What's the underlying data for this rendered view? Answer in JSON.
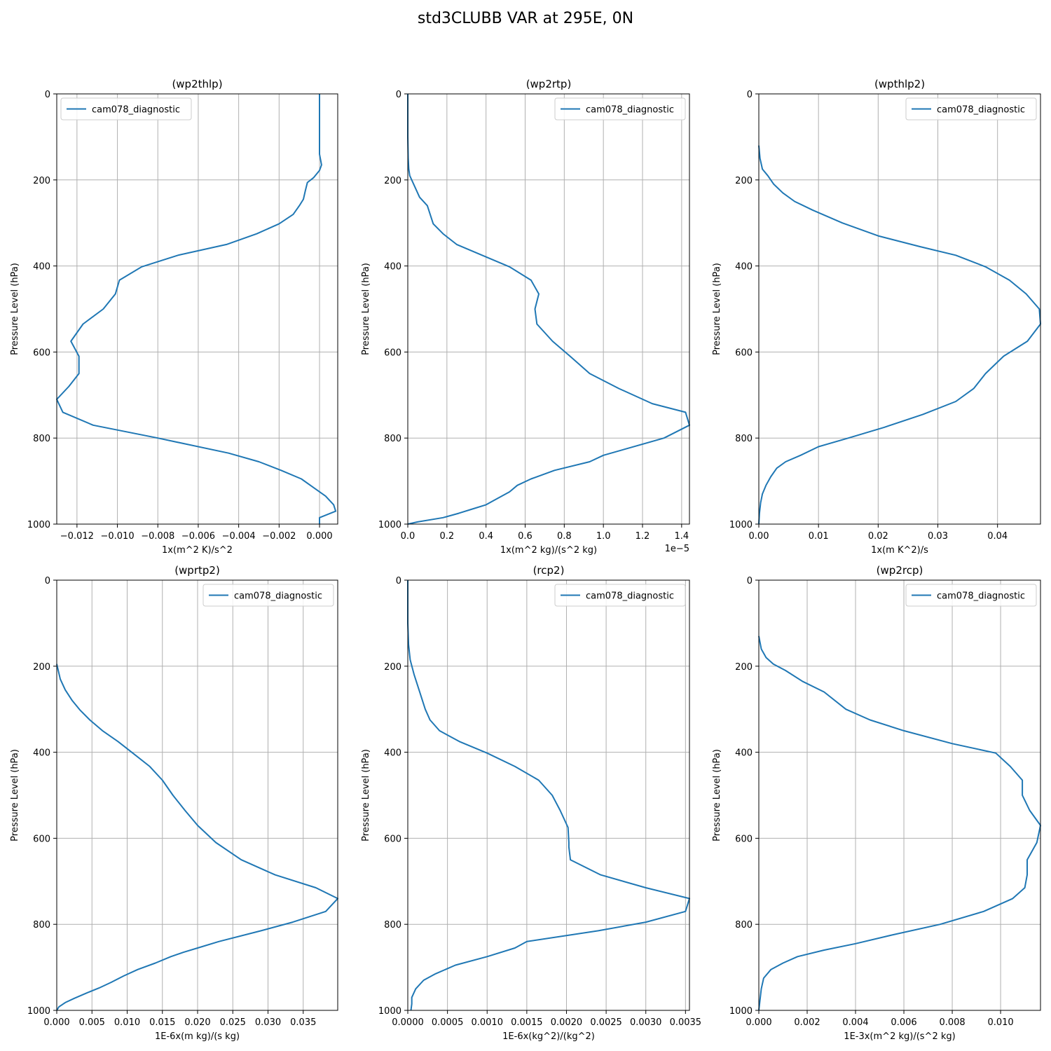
{
  "figure": {
    "title": "std3CLUBB VAR at 295E, 0N"
  },
  "style": {
    "line_color": "#1f77b4",
    "grid_color": "#b0b0b0"
  },
  "chart_data": [
    {
      "type": "line",
      "title": "(wp2thlp)",
      "xlabel": "1x(m^2 K)/s^2",
      "ylabel": "Pressure Level (hPa)",
      "xlim": [
        -0.013,
        0.0009
      ],
      "ylim": [
        1000,
        0
      ],
      "x_ticks": [
        -0.012,
        -0.01,
        -0.008,
        -0.006,
        -0.004,
        -0.002,
        0.0
      ],
      "x_tick_labels": [
        "−0.012",
        "−0.010",
        "−0.008",
        "−0.006",
        "−0.004",
        "−0.002",
        "0.000"
      ],
      "y_ticks": [
        0,
        200,
        400,
        600,
        800,
        1000
      ],
      "y_tick_labels": [
        "0",
        "200",
        "400",
        "600",
        "800",
        "1000"
      ],
      "offset_text": "",
      "grid": true,
      "legend_position": "upper left",
      "series": [
        {
          "name": "cam078_diagnostic",
          "x": [
            0.0,
            0.0,
            0.0,
            0.0,
            0.0001,
            0.0,
            -0.0003,
            -0.0006,
            -0.0007,
            -0.0008,
            -0.001,
            -0.0013,
            -0.002,
            -0.0031,
            -0.0046,
            -0.007,
            -0.0088,
            -0.0099,
            -0.0101,
            -0.0107,
            -0.0117,
            -0.0123,
            -0.0119,
            -0.0119,
            -0.0124,
            -0.013,
            -0.0127,
            -0.0112,
            -0.008,
            -0.0045,
            -0.003,
            -0.0019,
            -0.0009,
            -0.0003,
            0.0003,
            0.0007,
            0.0008,
            0.0,
            0.0
          ],
          "y": [
            0,
            50,
            100,
            140,
            165,
            178,
            195,
            206,
            225,
            245,
            260,
            280,
            302,
            325,
            350,
            375,
            402,
            433,
            465,
            500,
            535,
            575,
            610,
            650,
            680,
            710,
            740,
            770,
            800,
            835,
            855,
            875,
            895,
            915,
            935,
            955,
            970,
            985,
            1000
          ]
        }
      ]
    },
    {
      "type": "line",
      "title": "(wp2rtp)",
      "xlabel": "1x(m^2 kg)/(s^2 kg)",
      "ylabel": "Pressure Level (hPa)",
      "xlim": [
        0.0,
        1.44
      ],
      "ylim": [
        1000,
        0
      ],
      "x_ticks": [
        0.0,
        0.2,
        0.4,
        0.6,
        0.8,
        1.0,
        1.2,
        1.4
      ],
      "x_tick_labels": [
        "0.0",
        "0.2",
        "0.4",
        "0.6",
        "0.8",
        "1.0",
        "1.2",
        "1.4"
      ],
      "y_ticks": [
        0,
        200,
        400,
        600,
        800,
        1000
      ],
      "y_tick_labels": [
        "0",
        "200",
        "400",
        "600",
        "800",
        "1000"
      ],
      "offset_text": "1e−5",
      "grid": true,
      "legend_position": "upper right",
      "series": [
        {
          "name": "cam078_diagnostic",
          "x": [
            0.0,
            0.0,
            0.002,
            0.005,
            0.01,
            0.03,
            0.06,
            0.1,
            0.13,
            0.18,
            0.25,
            0.38,
            0.52,
            0.63,
            0.67,
            0.65,
            0.66,
            0.74,
            0.83,
            0.93,
            1.08,
            1.25,
            1.42,
            1.44,
            1.31,
            1.0,
            0.93,
            0.75,
            0.63,
            0.56,
            0.52,
            0.44,
            0.4,
            0.33,
            0.26,
            0.18,
            0.05,
            0.0
          ],
          "y": [
            0,
            100,
            150,
            175,
            190,
            210,
            240,
            260,
            302,
            325,
            350,
            375,
            402,
            433,
            465,
            500,
            535,
            575,
            610,
            650,
            685,
            720,
            740,
            770,
            800,
            840,
            855,
            875,
            895,
            910,
            925,
            945,
            955,
            965,
            975,
            985,
            995,
            1000
          ]
        }
      ]
    },
    {
      "type": "line",
      "title": "(wpthlp2)",
      "xlabel": "1x(m K^2)/s",
      "ylabel": "Pressure Level (hPa)",
      "xlim": [
        0.0,
        0.0472
      ],
      "ylim": [
        1000,
        0
      ],
      "x_ticks": [
        0.0,
        0.01,
        0.02,
        0.03,
        0.04
      ],
      "x_tick_labels": [
        "0.00",
        "0.01",
        "0.02",
        "0.03",
        "0.04"
      ],
      "y_ticks": [
        0,
        200,
        400,
        600,
        800,
        1000
      ],
      "y_tick_labels": [
        "0",
        "200",
        "400",
        "600",
        "800",
        "1000"
      ],
      "offset_text": "",
      "grid": true,
      "legend_position": "upper right",
      "series": [
        {
          "name": "cam078_diagnostic",
          "x": [
            0.0,
            0.0002,
            0.0006,
            0.0015,
            0.0025,
            0.004,
            0.006,
            0.009,
            0.014,
            0.02,
            0.027,
            0.033,
            0.038,
            0.042,
            0.0448,
            0.047,
            0.0472,
            0.045,
            0.041,
            0.038,
            0.036,
            0.033,
            0.0275,
            0.021,
            0.015,
            0.01,
            0.007,
            0.0045,
            0.003,
            0.002,
            0.0012,
            0.0006,
            0.0003,
            0.0001,
            0.0
          ],
          "y": [
            120,
            150,
            175,
            190,
            210,
            230,
            250,
            270,
            300,
            330,
            355,
            375,
            402,
            433,
            465,
            500,
            535,
            575,
            610,
            650,
            685,
            715,
            745,
            775,
            800,
            820,
            840,
            855,
            870,
            890,
            910,
            930,
            950,
            975,
            1000
          ]
        }
      ]
    },
    {
      "type": "line",
      "title": "(wprtp2)",
      "xlabel": "1E-6x(m kg)/(s kg)",
      "ylabel": "Pressure Level (hPa)",
      "xlim": [
        0.0,
        0.0399
      ],
      "ylim": [
        1000,
        0
      ],
      "x_ticks": [
        0.0,
        0.005,
        0.01,
        0.015,
        0.02,
        0.025,
        0.03,
        0.035
      ],
      "x_tick_labels": [
        "0.000",
        "0.005",
        "0.010",
        "0.015",
        "0.020",
        "0.025",
        "0.030",
        "0.035"
      ],
      "y_ticks": [
        0,
        200,
        400,
        600,
        800,
        1000
      ],
      "y_tick_labels": [
        "0",
        "200",
        "400",
        "600",
        "800",
        "1000"
      ],
      "offset_text": "",
      "grid": true,
      "legend_position": "upper right",
      "series": [
        {
          "name": "cam078_diagnostic",
          "x": [
            0.0,
            0.0005,
            0.0012,
            0.0022,
            0.0033,
            0.0047,
            0.0065,
            0.0087,
            0.0108,
            0.0132,
            0.015,
            0.0165,
            0.0182,
            0.02,
            0.0226,
            0.0262,
            0.031,
            0.0368,
            0.0399,
            0.0382,
            0.0335,
            0.029,
            0.023,
            0.02,
            0.018,
            0.0162,
            0.014,
            0.0115,
            0.0095,
            0.0077,
            0.006,
            0.0042,
            0.0025,
            0.0012,
            0.0003,
            0.0
          ],
          "y": [
            195,
            230,
            255,
            280,
            302,
            325,
            350,
            375,
            402,
            433,
            465,
            500,
            535,
            570,
            610,
            650,
            685,
            715,
            740,
            770,
            795,
            815,
            840,
            855,
            865,
            875,
            890,
            905,
            920,
            935,
            948,
            960,
            972,
            982,
            992,
            1000
          ]
        }
      ]
    },
    {
      "type": "line",
      "title": "(rcp2)",
      "xlabel": "1E-6x(kg^2)/(kg^2)",
      "ylabel": "Pressure Level (hPa)",
      "xlim": [
        0.0,
        0.00355
      ],
      "ylim": [
        1000,
        0
      ],
      "x_ticks": [
        0.0,
        0.0005,
        0.001,
        0.0015,
        0.002,
        0.0025,
        0.003,
        0.0035
      ],
      "x_tick_labels": [
        "0.0000",
        "0.0005",
        "0.0010",
        "0.0015",
        "0.0020",
        "0.0025",
        "0.0030",
        "0.0035"
      ],
      "y_ticks": [
        0,
        200,
        400,
        600,
        800,
        1000
      ],
      "y_tick_labels": [
        "0",
        "200",
        "400",
        "600",
        "800",
        "1000"
      ],
      "offset_text": "",
      "grid": true,
      "legend_position": "upper right",
      "series": [
        {
          "name": "cam078_diagnostic",
          "x": [
            0.0,
            0.0,
            1e-05,
            3e-05,
            8e-05,
            0.00015,
            0.00022,
            0.00028,
            0.0004,
            0.00065,
            0.001,
            0.00135,
            0.00165,
            0.00182,
            0.00192,
            0.00202,
            0.00203,
            0.00203,
            0.00205,
            0.00243,
            0.003,
            0.00355,
            0.0035,
            0.003,
            0.0024,
            0.0015,
            0.00135,
            0.001,
            0.0006,
            0.00035,
            0.0002,
            0.0001,
            5e-05,
            5e-05,
            4e-05
          ],
          "y": [
            0,
            100,
            150,
            185,
            220,
            260,
            300,
            325,
            350,
            375,
            402,
            433,
            465,
            500,
            535,
            575,
            610,
            620,
            650,
            685,
            715,
            740,
            770,
            795,
            815,
            840,
            855,
            875,
            895,
            915,
            930,
            950,
            970,
            985,
            1000
          ]
        }
      ]
    },
    {
      "type": "line",
      "title": "(wp2rcp)",
      "xlabel": "1E-3x(m^2 kg)/(s^2 kg)",
      "ylabel": "Pressure Level (hPa)",
      "xlim": [
        0.0,
        0.01165
      ],
      "ylim": [
        1000,
        0
      ],
      "x_ticks": [
        0.0,
        0.002,
        0.004,
        0.006,
        0.008,
        0.01
      ],
      "x_tick_labels": [
        "0.000",
        "0.002",
        "0.004",
        "0.006",
        "0.008",
        "0.010"
      ],
      "y_ticks": [
        0,
        200,
        400,
        600,
        800,
        1000
      ],
      "y_tick_labels": [
        "0",
        "200",
        "400",
        "600",
        "800",
        "1000"
      ],
      "offset_text": "",
      "grid": true,
      "legend_position": "upper right",
      "series": [
        {
          "name": "cam078_diagnostic",
          "x": [
            0.0,
            0.0001,
            0.0003,
            0.0006,
            0.0011,
            0.0018,
            0.0027,
            0.0036,
            0.0046,
            0.006,
            0.008,
            0.0098,
            0.0104,
            0.0109,
            0.0109,
            0.0112,
            0.01165,
            0.0115,
            0.0111,
            0.0111,
            0.011,
            0.0105,
            0.0093,
            0.0075,
            0.0055,
            0.004,
            0.0027,
            0.0016,
            0.001,
            0.0005,
            0.0002,
            0.0001,
            0.0
          ],
          "y": [
            130,
            160,
            180,
            195,
            210,
            235,
            260,
            300,
            325,
            350,
            380,
            402,
            433,
            465,
            500,
            535,
            570,
            610,
            650,
            685,
            715,
            740,
            770,
            800,
            825,
            845,
            860,
            875,
            890,
            905,
            925,
            950,
            1000
          ]
        }
      ]
    }
  ]
}
